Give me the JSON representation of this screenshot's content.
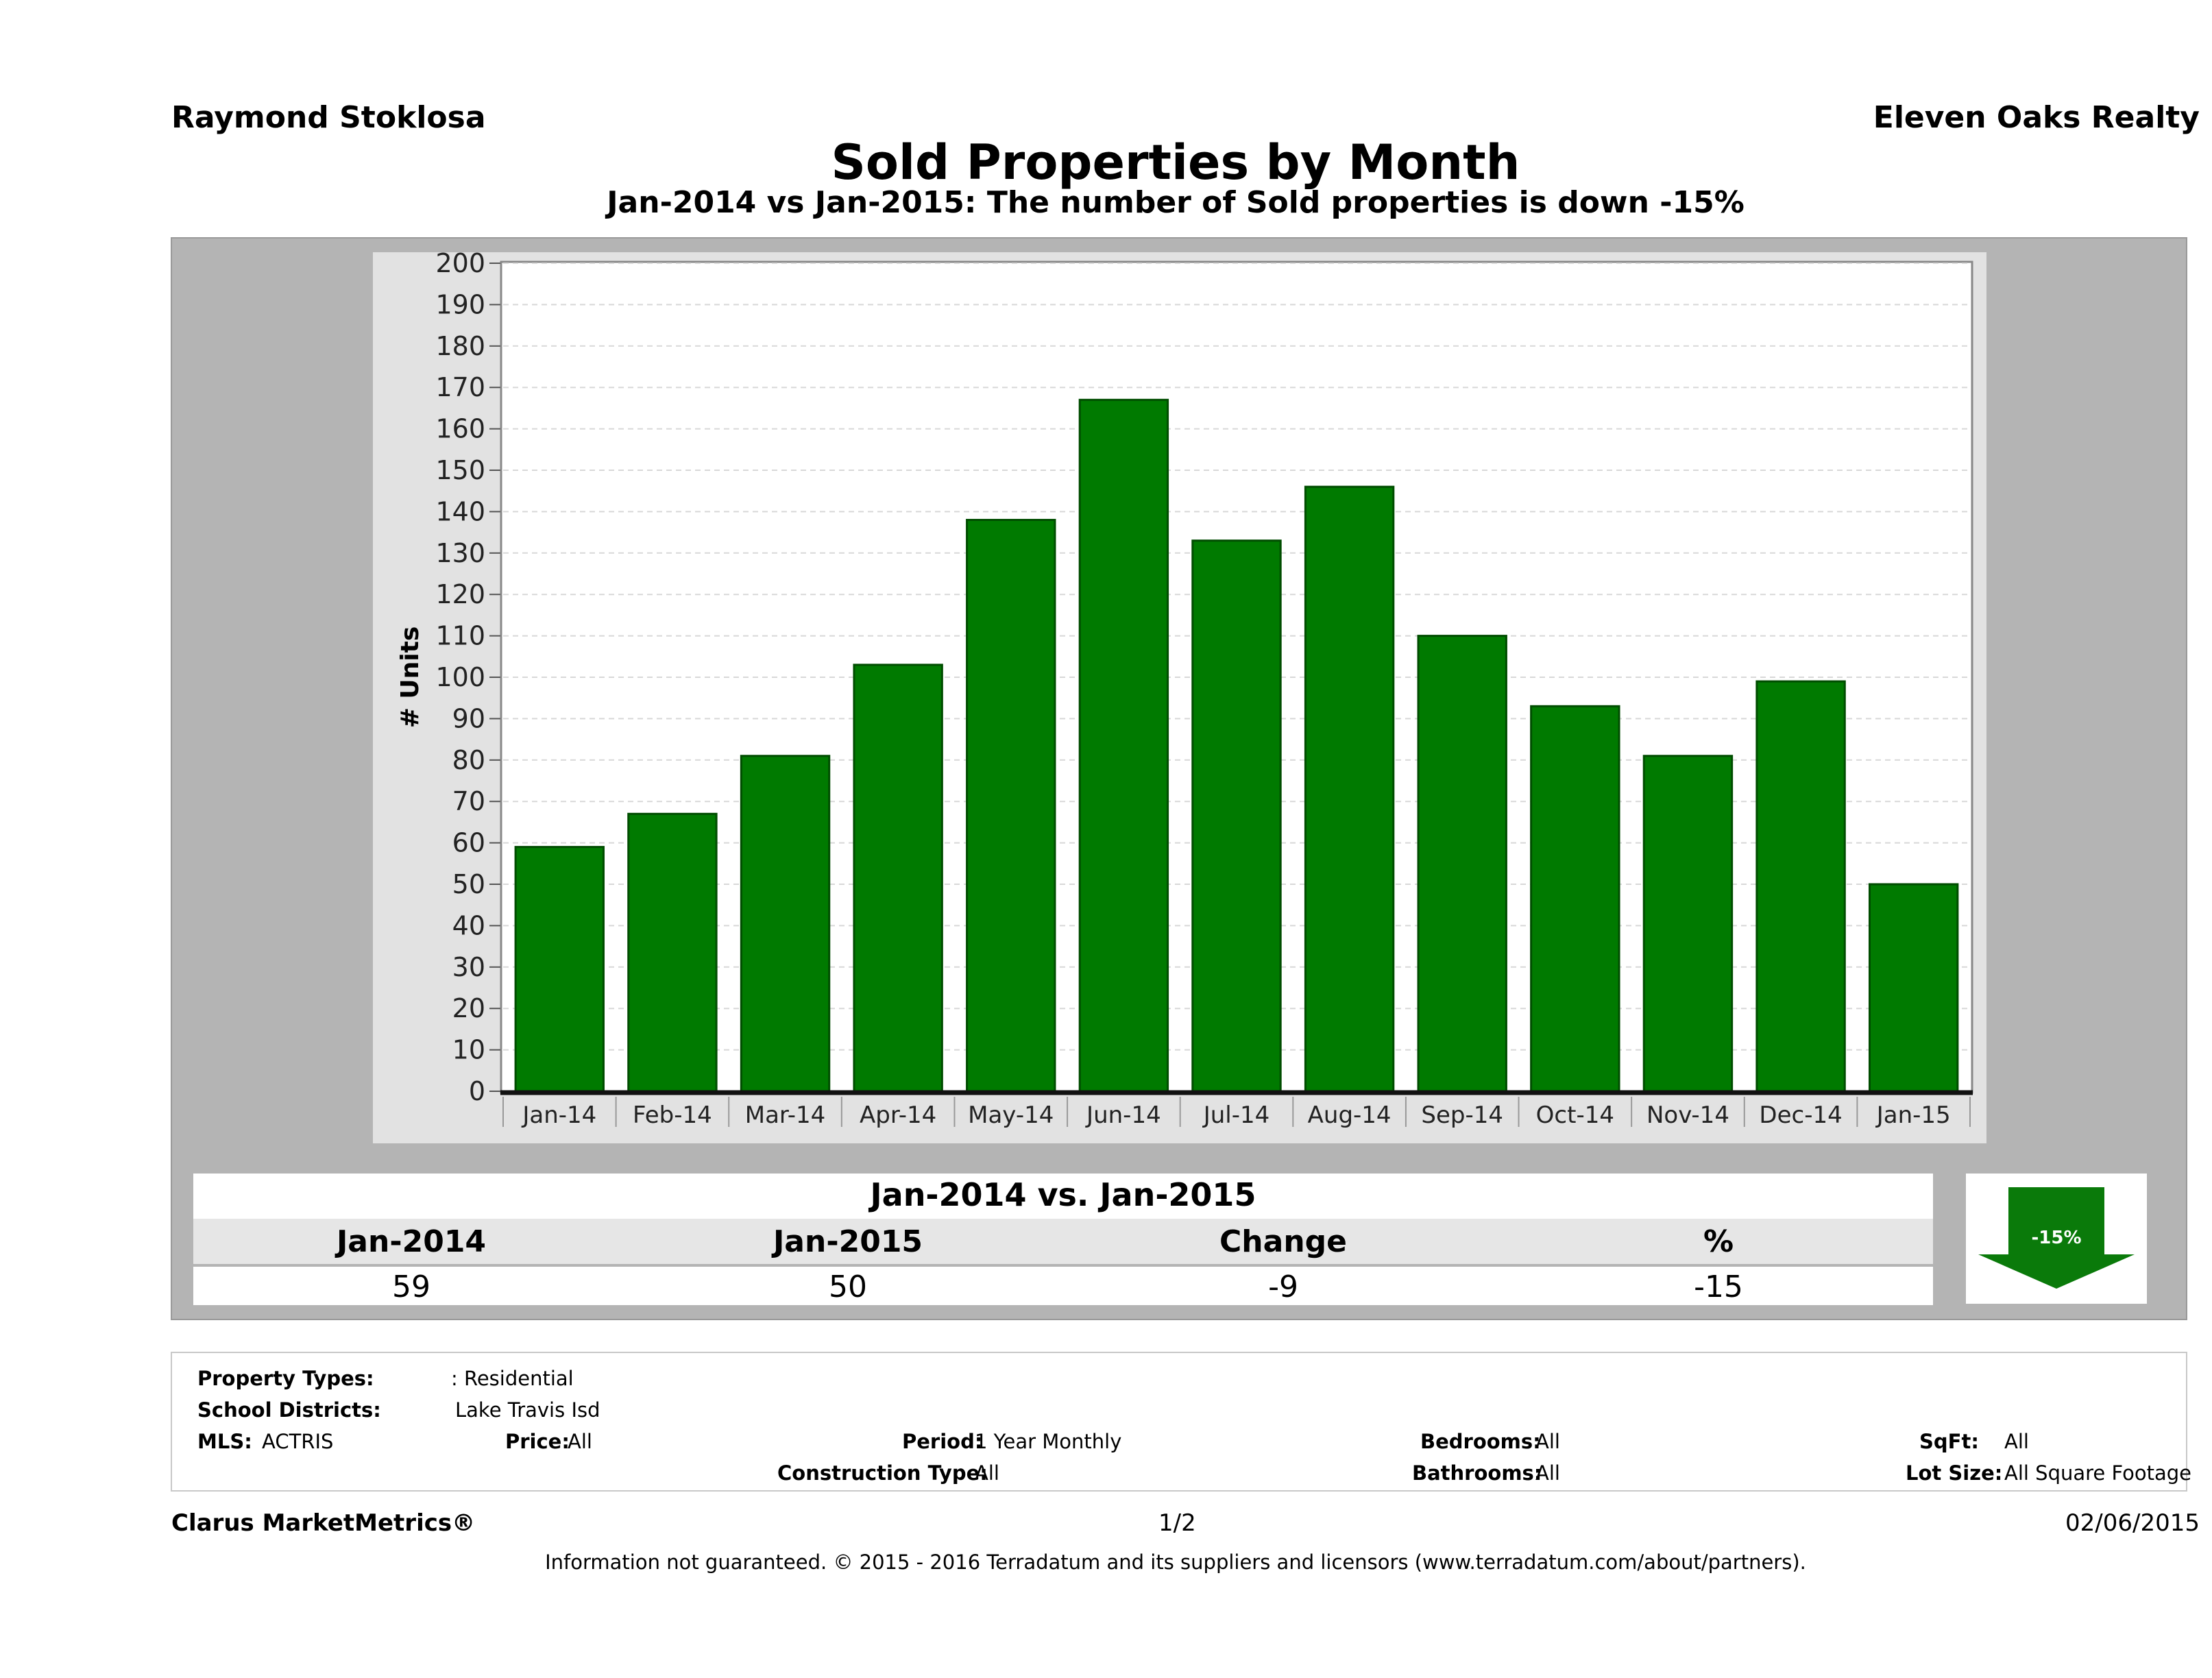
{
  "header": {
    "agent": "Raymond Stoklosa",
    "brokerage": "Eleven Oaks Realty"
  },
  "chart_data": {
    "type": "bar",
    "title": "Sold Properties by Month",
    "subtitle": "Jan-2014 vs Jan-2015: The number of Sold  properties is down -15%",
    "ylabel": "# Units",
    "xlabel": "",
    "ylim": [
      0,
      200
    ],
    "ytick_step": 10,
    "grid": true,
    "bar_color": "#007a00",
    "categories": [
      "Jan-14",
      "Feb-14",
      "Mar-14",
      "Apr-14",
      "May-14",
      "Jun-14",
      "Jul-14",
      "Aug-14",
      "Sep-14",
      "Oct-14",
      "Nov-14",
      "Dec-14",
      "Jan-15"
    ],
    "values": [
      59,
      67,
      81,
      103,
      138,
      167,
      133,
      146,
      110,
      93,
      81,
      99,
      50
    ]
  },
  "summary": {
    "title": "Jan-2014 vs. Jan-2015",
    "headers": [
      "Jan-2014",
      "Jan-2015",
      "Change",
      "%"
    ],
    "values": [
      "59",
      "50",
      "-9",
      "-15"
    ],
    "arrow_label": "-15%",
    "arrow_direction": "down",
    "arrow_color": "#0a7a0a"
  },
  "criteria": {
    "property_types_label": "Property Types:",
    "property_types_value": ": Residential",
    "school_districts_label": "School Districts:",
    "school_districts_value": "Lake Travis Isd",
    "mls_label": "MLS:",
    "mls_value": "ACTRIS",
    "price_label": "Price:",
    "price_value": "All",
    "period_label": "Period:",
    "period_value": "1 Year Monthly",
    "construction_label": "Construction Type:",
    "construction_value": "All",
    "bedrooms_label": "Bedrooms:",
    "bedrooms_value": "All",
    "bathrooms_label": "Bathrooms:",
    "bathrooms_value": "All",
    "sqft_label": "SqFt:",
    "sqft_value": "All",
    "lotsize_label": "Lot Size:",
    "lotsize_value": "All Square Footage"
  },
  "footer": {
    "product": "Clarus MarketMetrics®",
    "page": "1/2",
    "date": "02/06/2015",
    "disclaimer": "Information not guaranteed. © 2015 - 2016 Terradatum and its suppliers and licensors (www.terradatum.com/about/partners)."
  }
}
